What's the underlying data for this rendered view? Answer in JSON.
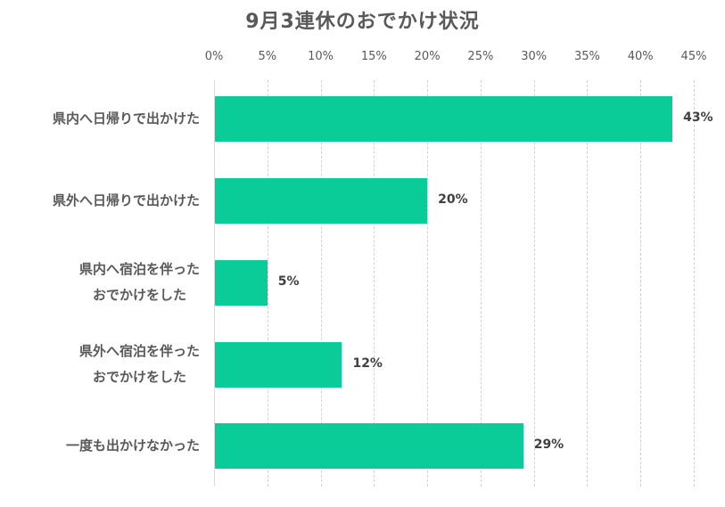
{
  "chart_data": {
    "type": "bar",
    "orientation": "horizontal",
    "title": "9月3連休のおでかけ状況",
    "categories": [
      "県内へ日帰りで出かけた",
      "県外へ日帰りで出かけた",
      "県内へ宿泊を伴ったおでかけをした",
      "県外へ宿泊を伴ったおでかけをした",
      "一度も出かけなかった"
    ],
    "category_lines": [
      [
        "県内へ日帰りで出かけた"
      ],
      [
        "県外へ日帰りで出かけた"
      ],
      [
        "県内へ宿泊を伴った",
        "おでかけをした"
      ],
      [
        "県外へ宿泊を伴った",
        "おでかけをした"
      ],
      [
        "一度も出かけなかった"
      ]
    ],
    "values": [
      43,
      20,
      5,
      12,
      29
    ],
    "value_labels": [
      "43%",
      "20%",
      "5%",
      "12%",
      "29%"
    ],
    "xlabel": "",
    "ylabel": "",
    "xlim": [
      0,
      45
    ],
    "x_ticks": [
      "0%",
      "5%",
      "10%",
      "15%",
      "20%",
      "25%",
      "30%",
      "35%",
      "40%",
      "45%"
    ],
    "x_axis_position": "top",
    "grid": true,
    "legend": null,
    "bar_color": "#09cc98"
  }
}
